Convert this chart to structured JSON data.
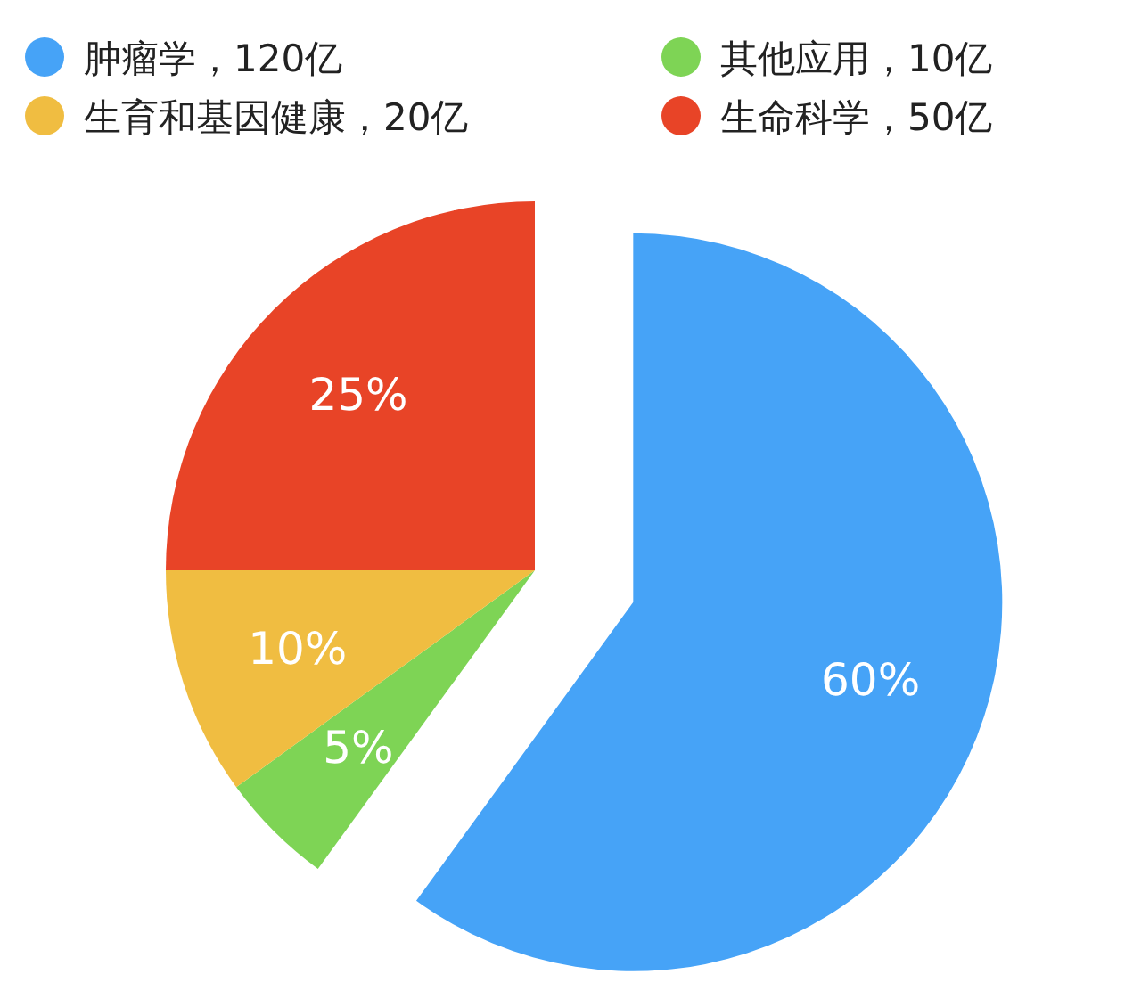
{
  "chart_data": {
    "type": "pie",
    "categories": [
      "肿瘤学，120亿",
      "其他应用，10亿",
      "生育和基因健康，20亿",
      "生命科学，50亿"
    ],
    "values": [
      60,
      5,
      10,
      25
    ],
    "colors": [
      "#46a3f7",
      "#7ed455",
      "#f0bd41",
      "#e84427"
    ],
    "value_labels": [
      "60%",
      "5%",
      "10%",
      "25%"
    ],
    "legend": "top"
  }
}
